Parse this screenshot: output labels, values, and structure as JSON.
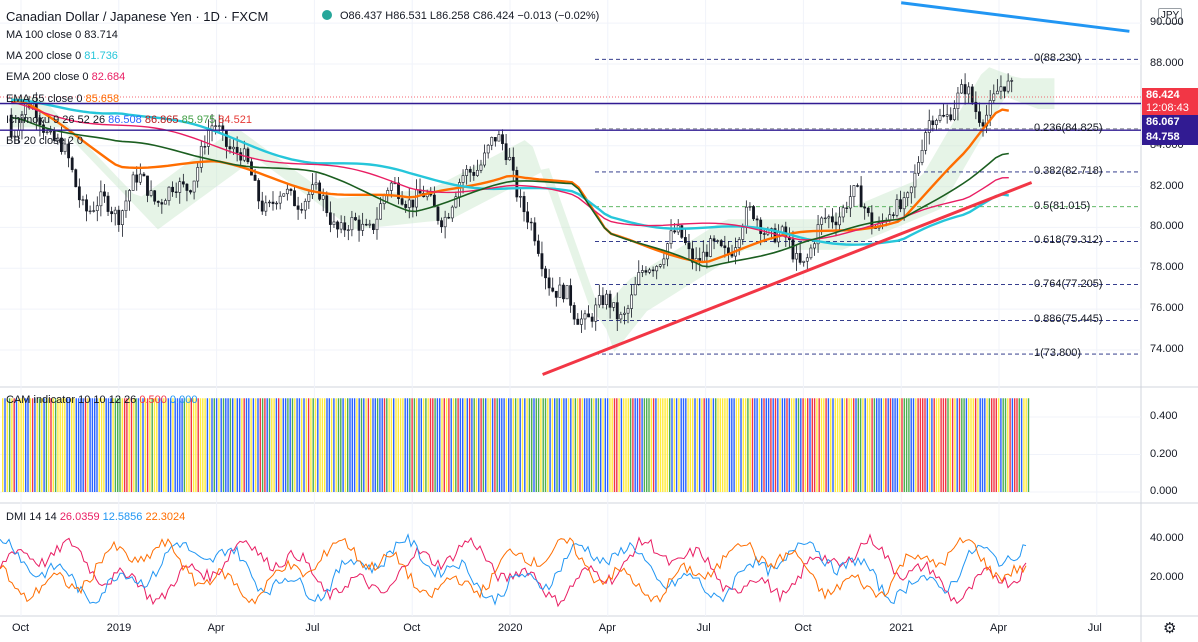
{
  "header": {
    "title": "Canadian Dollar / Japanese Yen · 1D · FXCM",
    "ohlc": "O86.437 H86.531 L86.258 C86.424 −0.013 (−0.02%)",
    "currency_badge": "JPY"
  },
  "legends": {
    "ma100": {
      "name": "MA 100 close 0",
      "value": "83.714",
      "color": "#131722"
    },
    "ma200": {
      "name": "MA 200 close 0",
      "value": "81.736",
      "color": "#26c6da"
    },
    "ema200": {
      "name": "EMA 200 close 0",
      "value": "82.684",
      "color": "#e91e63"
    },
    "ema55": {
      "name": "EMA 55 close 0",
      "value": "85.658",
      "color": "#ff6d00"
    },
    "ichimoku": {
      "name": "Ichimoku 9 26 52 26",
      "v1": "86.508",
      "v2": "86.865",
      "v3": "85.975",
      "v4": "84.521"
    },
    "bb": {
      "name": "BB 20 close 2 0",
      "value": ""
    },
    "cam": {
      "name": "CAM indicator 10 10 12 26",
      "v1": "0.500",
      "v2": "0.000"
    },
    "dmi": {
      "name": "DMI 14 14",
      "adx": "26.0359",
      "plus": "12.5856",
      "minus": "22.3024"
    }
  },
  "price_axis": [
    "90.000",
    "88.000",
    "86.000",
    "84.000",
    "82.000",
    "80.000",
    "78.000",
    "76.000",
    "74.000"
  ],
  "cam_axis": [
    "0.400",
    "0.200",
    "0.000"
  ],
  "dmi_axis": [
    "40.000",
    "20.000"
  ],
  "price_boxes": {
    "last": "86.424",
    "countdown": "12:08:43",
    "line1": "86.067",
    "line2": "84.758"
  },
  "time_axis": [
    "Oct",
    "2019",
    "Apr",
    "Jul",
    "Oct",
    "2020",
    "Apr",
    "Jul",
    "Oct",
    "2021",
    "Apr",
    "Jul"
  ],
  "fib_levels": [
    {
      "label": "0(88.230)",
      "value": 88.23
    },
    {
      "label": "0.236(84.825)",
      "value": 84.825
    },
    {
      "label": "0.382(82.718)",
      "value": 82.718
    },
    {
      "label": "0.5(81.015)",
      "value": 81.015
    },
    {
      "label": "0.618(79.312)",
      "value": 79.312
    },
    {
      "label": "0.764(77.205)",
      "value": 77.205
    },
    {
      "label": "0.886(75.445)",
      "value": 75.445
    },
    {
      "label": "1(73.800)",
      "value": 73.8
    }
  ],
  "chart_data": {
    "type": "line",
    "title": "Canadian Dollar / Japanese Yen · 1D · FXCM",
    "x": [
      "2018-10",
      "2019-01",
      "2019-04",
      "2019-07",
      "2019-10",
      "2020-01",
      "2020-03",
      "2020-04",
      "2020-07",
      "2020-10",
      "2021-01",
      "2021-03",
      "2021-04"
    ],
    "series": [
      {
        "name": "CAD/JPY close",
        "values": [
          85.5,
          80.5,
          84.0,
          80.5,
          81.0,
          83.5,
          74.5,
          76.5,
          79.5,
          79.5,
          81.5,
          87.0,
          86.4
        ]
      },
      {
        "name": "EMA 55 close 0",
        "values": [
          86.0,
          83.2,
          83.0,
          82.0,
          81.2,
          82.8,
          82.0,
          79.5,
          78.5,
          79.6,
          80.5,
          83.5,
          85.66
        ]
      },
      {
        "name": "MA 200 close 0",
        "values": [
          86.0,
          85.8,
          84.5,
          83.3,
          82.5,
          82.0,
          81.5,
          80.5,
          80.0,
          79.5,
          79.3,
          80.5,
          81.74
        ]
      },
      {
        "name": "EMA 200 close 0",
        "values": [
          86.0,
          85.0,
          84.0,
          83.0,
          82.0,
          81.9,
          81.5,
          80.5,
          80.0,
          79.6,
          80.2,
          81.5,
          82.68
        ]
      },
      {
        "name": "MA 100 close 0",
        "values": [
          85.5,
          84.0,
          83.5,
          82.5,
          81.0,
          82.0,
          82.3,
          80.0,
          77.8,
          79.5,
          80.2,
          82.5,
          83.71
        ]
      }
    ],
    "ylim": [
      72.5,
      91.0
    ],
    "horizontal_lines": [
      86.067,
      84.758
    ],
    "trendlines": [
      {
        "color": "#f23645",
        "from": [
          "2020-02",
          72.8
        ],
        "to": [
          "2021-05",
          82.2
        ]
      },
      {
        "color": "#2196f3",
        "from": [
          "2021-01",
          91.0
        ],
        "to": [
          "2021-08",
          89.6
        ]
      }
    ],
    "last_price": 86.424
  }
}
